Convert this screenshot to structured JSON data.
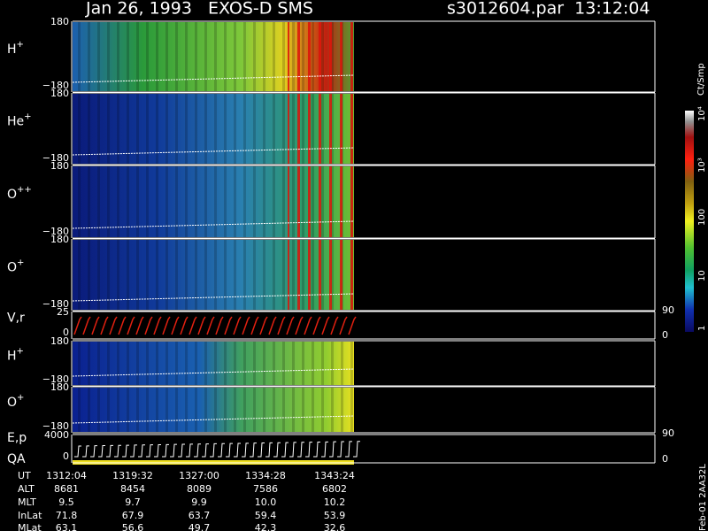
{
  "header": {
    "title": "Jan 26, 1993   EXOS-D SMS",
    "file": "s3012604.par  13:12:04"
  },
  "panels": [
    {
      "label": "H",
      "sup": "+",
      "top": "180",
      "bottom": "−180"
    },
    {
      "label": "He",
      "sup": "+",
      "top": "180",
      "bottom": "−180"
    },
    {
      "label": "O",
      "sup": "++",
      "top": "180",
      "bottom": "−180"
    },
    {
      "label": "O",
      "sup": "+",
      "top": "180",
      "bottom": "−180"
    },
    {
      "label": "V,r",
      "top": "25",
      "bottom": "0",
      "right_top": "90",
      "right_bottom": "0"
    },
    {
      "label": "H",
      "sup": "+",
      "top": "180",
      "bottom": "−180"
    },
    {
      "label": "O",
      "sup": "+",
      "top": "180",
      "bottom": "−180"
    },
    {
      "label": "E,p",
      "label2": "QA",
      "top": "4000",
      "bottom": "0",
      "right_top": "90",
      "right_bottom": "0"
    }
  ],
  "colorbar": {
    "unit": "Ct/Smp",
    "labels": [
      "10⁴",
      "10³",
      "100",
      "10",
      "1"
    ]
  },
  "ephemeris": [
    [
      "UT",
      "1312:04",
      "1319:32",
      "1327:00",
      "1334:28",
      "1343:24"
    ],
    [
      "ALT",
      "8681",
      "8454",
      "8089",
      "7586",
      "6802"
    ],
    [
      "MLT",
      "9.5",
      "9.7",
      "9.9",
      "10.0",
      "10.2"
    ],
    [
      "InLat",
      "71.8",
      "67.9",
      "63.7",
      "59.4",
      "53.9"
    ],
    [
      "MLat",
      "63.1",
      "56.6",
      "49.7",
      "42.3",
      "32.6"
    ]
  ],
  "footer": "Feb-01 2AA32L"
}
